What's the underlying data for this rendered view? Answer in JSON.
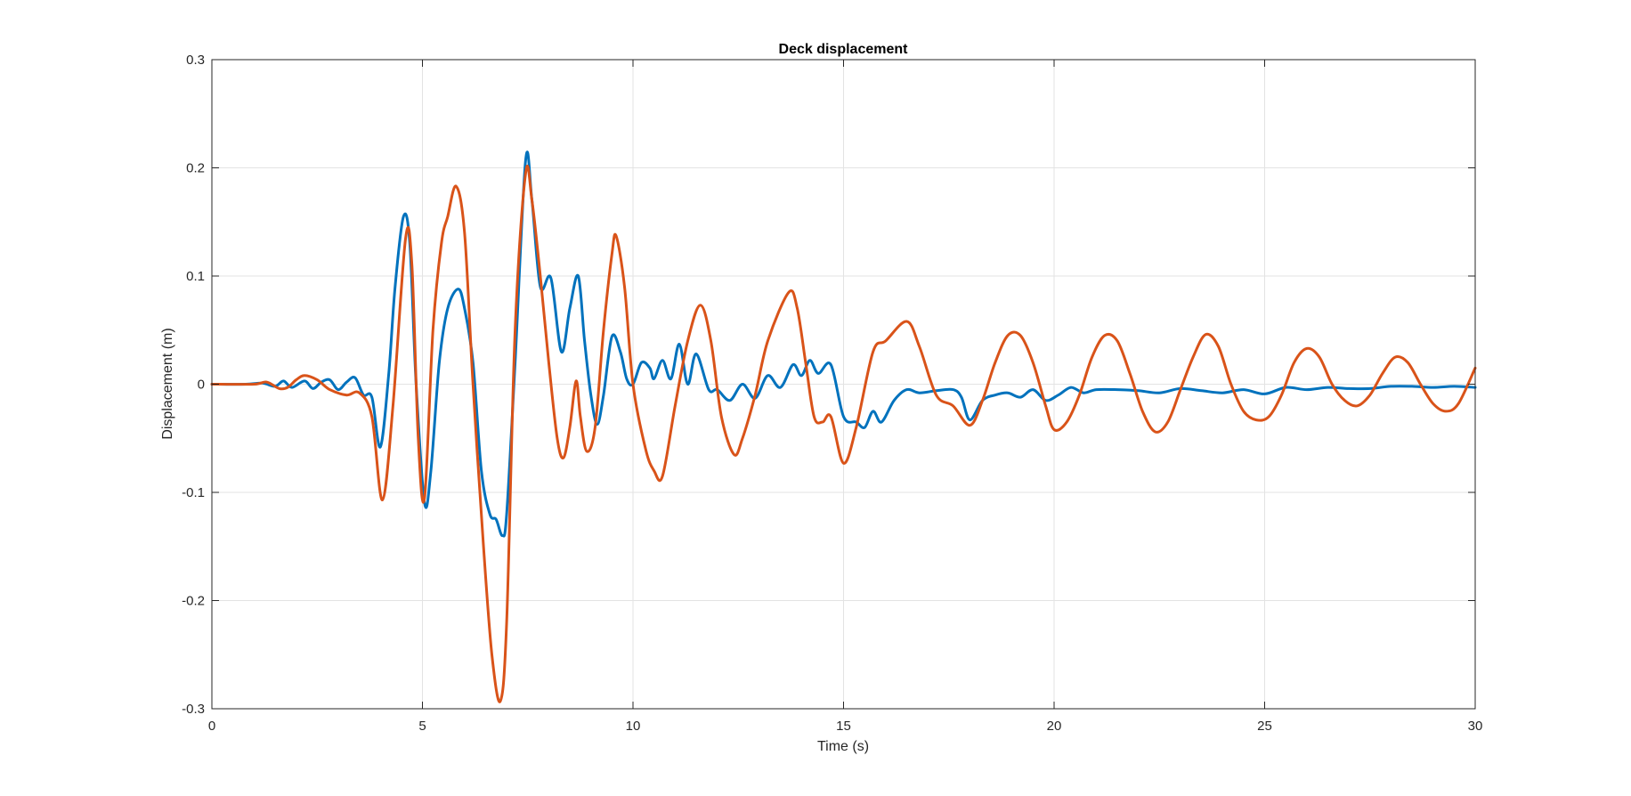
{
  "chart_data": {
    "type": "line",
    "title": "Deck displacement",
    "xlabel": "Time (s)",
    "ylabel": "Displacement (m)",
    "xlim": [
      0,
      30
    ],
    "ylim": [
      -0.3,
      0.3
    ],
    "grid": true,
    "legend": "none",
    "x_ticks": [
      {
        "value": 0,
        "label": "0"
      },
      {
        "value": 5,
        "label": "5"
      },
      {
        "value": 10,
        "label": "10"
      },
      {
        "value": 15,
        "label": "15"
      },
      {
        "value": 20,
        "label": "20"
      },
      {
        "value": 25,
        "label": "25"
      },
      {
        "value": 30,
        "label": "30"
      }
    ],
    "y_ticks": [
      {
        "value": -0.3,
        "label": "-0.3"
      },
      {
        "value": -0.2,
        "label": "-0.2"
      },
      {
        "value": -0.1,
        "label": "-0.1"
      },
      {
        "value": 0,
        "label": "0"
      },
      {
        "value": 0.1,
        "label": "0.1"
      },
      {
        "value": 0.2,
        "label": "0.2"
      },
      {
        "value": 0.3,
        "label": "0.3"
      }
    ],
    "series": [
      {
        "color": "#0072BD",
        "points": [
          [
            0,
            0
          ],
          [
            0.8,
            0
          ],
          [
            1.2,
            0.001
          ],
          [
            1.5,
            -0.002
          ],
          [
            1.7,
            0.003
          ],
          [
            1.9,
            -0.003
          ],
          [
            2.2,
            0.003
          ],
          [
            2.4,
            -0.004
          ],
          [
            2.6,
            0.002
          ],
          [
            2.8,
            0.004
          ],
          [
            3.0,
            -0.005
          ],
          [
            3.2,
            0.002
          ],
          [
            3.4,
            0.006
          ],
          [
            3.6,
            -0.01
          ],
          [
            3.8,
            -0.012
          ],
          [
            4.0,
            -0.058
          ],
          [
            4.2,
            0.01
          ],
          [
            4.35,
            0.09
          ],
          [
            4.55,
            0.155
          ],
          [
            4.7,
            0.13
          ],
          [
            4.85,
            0.0
          ],
          [
            5.05,
            -0.11
          ],
          [
            5.2,
            -0.08
          ],
          [
            5.4,
            0.02
          ],
          [
            5.6,
            0.07
          ],
          [
            5.85,
            0.088
          ],
          [
            6.0,
            0.07
          ],
          [
            6.2,
            0.02
          ],
          [
            6.4,
            -0.08
          ],
          [
            6.6,
            -0.12
          ],
          [
            6.75,
            -0.125
          ],
          [
            6.9,
            -0.14
          ],
          [
            7.0,
            -0.12
          ],
          [
            7.2,
            0.02
          ],
          [
            7.45,
            0.207
          ],
          [
            7.6,
            0.17
          ],
          [
            7.8,
            0.09
          ],
          [
            8.05,
            0.098
          ],
          [
            8.3,
            0.03
          ],
          [
            8.5,
            0.07
          ],
          [
            8.7,
            0.1
          ],
          [
            8.85,
            0.04
          ],
          [
            9.0,
            -0.01
          ],
          [
            9.15,
            -0.037
          ],
          [
            9.3,
            -0.01
          ],
          [
            9.5,
            0.044
          ],
          [
            9.7,
            0.03
          ],
          [
            9.85,
            0.005
          ],
          [
            10.0,
            0.0
          ],
          [
            10.2,
            0.02
          ],
          [
            10.4,
            0.015
          ],
          [
            10.5,
            0.005
          ],
          [
            10.7,
            0.022
          ],
          [
            10.9,
            0.005
          ],
          [
            11.1,
            0.037
          ],
          [
            11.3,
            0.0
          ],
          [
            11.5,
            0.028
          ],
          [
            11.8,
            -0.005
          ],
          [
            12.0,
            -0.005
          ],
          [
            12.3,
            -0.015
          ],
          [
            12.6,
            0.0
          ],
          [
            12.9,
            -0.013
          ],
          [
            13.2,
            0.008
          ],
          [
            13.5,
            -0.003
          ],
          [
            13.8,
            0.018
          ],
          [
            14.0,
            0.008
          ],
          [
            14.2,
            0.022
          ],
          [
            14.4,
            0.01
          ],
          [
            14.7,
            0.018
          ],
          [
            15.0,
            -0.03
          ],
          [
            15.3,
            -0.035
          ],
          [
            15.5,
            -0.04
          ],
          [
            15.7,
            -0.025
          ],
          [
            15.9,
            -0.035
          ],
          [
            16.2,
            -0.015
          ],
          [
            16.5,
            -0.005
          ],
          [
            16.8,
            -0.008
          ],
          [
            17.2,
            -0.006
          ],
          [
            17.6,
            -0.005
          ],
          [
            17.8,
            -0.012
          ],
          [
            18.0,
            -0.033
          ],
          [
            18.3,
            -0.015
          ],
          [
            18.6,
            -0.01
          ],
          [
            18.9,
            -0.008
          ],
          [
            19.2,
            -0.012
          ],
          [
            19.5,
            -0.005
          ],
          [
            19.8,
            -0.015
          ],
          [
            20.1,
            -0.01
          ],
          [
            20.4,
            -0.003
          ],
          [
            20.7,
            -0.008
          ],
          [
            21.0,
            -0.005
          ],
          [
            21.5,
            -0.005
          ],
          [
            22.0,
            -0.006
          ],
          [
            22.5,
            -0.008
          ],
          [
            23.0,
            -0.004
          ],
          [
            23.5,
            -0.006
          ],
          [
            24.0,
            -0.008
          ],
          [
            24.5,
            -0.005
          ],
          [
            25.0,
            -0.009
          ],
          [
            25.5,
            -0.003
          ],
          [
            26.0,
            -0.005
          ],
          [
            26.5,
            -0.003
          ],
          [
            27.0,
            -0.004
          ],
          [
            27.5,
            -0.004
          ],
          [
            28.0,
            -0.002
          ],
          [
            28.5,
            -0.002
          ],
          [
            29.0,
            -0.003
          ],
          [
            29.5,
            -0.002
          ],
          [
            30.0,
            -0.003
          ]
        ]
      },
      {
        "color": "#D95319",
        "points": [
          [
            0,
            0
          ],
          [
            1.0,
            0
          ],
          [
            1.3,
            0.002
          ],
          [
            1.6,
            -0.004
          ],
          [
            1.8,
            -0.003
          ],
          [
            2.0,
            0.004
          ],
          [
            2.2,
            0.008
          ],
          [
            2.5,
            0.004
          ],
          [
            2.8,
            -0.005
          ],
          [
            3.2,
            -0.01
          ],
          [
            3.5,
            -0.008
          ],
          [
            3.8,
            -0.03
          ],
          [
            4.05,
            -0.107
          ],
          [
            4.3,
            -0.02
          ],
          [
            4.6,
            0.135
          ],
          [
            4.75,
            0.11
          ],
          [
            4.9,
            -0.05
          ],
          [
            5.05,
            -0.105
          ],
          [
            5.25,
            0.05
          ],
          [
            5.45,
            0.13
          ],
          [
            5.6,
            0.155
          ],
          [
            5.8,
            0.183
          ],
          [
            6.0,
            0.14
          ],
          [
            6.2,
            0.0
          ],
          [
            6.45,
            -0.15
          ],
          [
            6.65,
            -0.25
          ],
          [
            6.85,
            -0.293
          ],
          [
            7.0,
            -0.22
          ],
          [
            7.2,
            0.05
          ],
          [
            7.45,
            0.195
          ],
          [
            7.6,
            0.17
          ],
          [
            7.8,
            0.1
          ],
          [
            8.0,
            0.02
          ],
          [
            8.2,
            -0.05
          ],
          [
            8.35,
            -0.068
          ],
          [
            8.5,
            -0.04
          ],
          [
            8.65,
            0.003
          ],
          [
            8.75,
            -0.03
          ],
          [
            8.9,
            -0.062
          ],
          [
            9.1,
            -0.04
          ],
          [
            9.3,
            0.05
          ],
          [
            9.5,
            0.12
          ],
          [
            9.6,
            0.137
          ],
          [
            9.8,
            0.09
          ],
          [
            10.0,
            0.0
          ],
          [
            10.3,
            -0.06
          ],
          [
            10.5,
            -0.08
          ],
          [
            10.7,
            -0.085
          ],
          [
            11.0,
            -0.02
          ],
          [
            11.3,
            0.04
          ],
          [
            11.6,
            0.073
          ],
          [
            11.85,
            0.04
          ],
          [
            12.1,
            -0.03
          ],
          [
            12.4,
            -0.065
          ],
          [
            12.6,
            -0.05
          ],
          [
            12.9,
            -0.01
          ],
          [
            13.2,
            0.04
          ],
          [
            13.7,
            0.085
          ],
          [
            13.9,
            0.07
          ],
          [
            14.1,
            0.02
          ],
          [
            14.3,
            -0.03
          ],
          [
            14.5,
            -0.035
          ],
          [
            14.7,
            -0.03
          ],
          [
            15.0,
            -0.073
          ],
          [
            15.3,
            -0.04
          ],
          [
            15.7,
            0.03
          ],
          [
            16.0,
            0.04
          ],
          [
            16.5,
            0.058
          ],
          [
            16.8,
            0.035
          ],
          [
            17.2,
            -0.01
          ],
          [
            17.6,
            -0.02
          ],
          [
            18.0,
            -0.038
          ],
          [
            18.3,
            -0.015
          ],
          [
            18.6,
            0.02
          ],
          [
            18.9,
            0.045
          ],
          [
            19.2,
            0.045
          ],
          [
            19.5,
            0.02
          ],
          [
            19.8,
            -0.02
          ],
          [
            20.0,
            -0.042
          ],
          [
            20.3,
            -0.035
          ],
          [
            20.6,
            -0.01
          ],
          [
            20.9,
            0.025
          ],
          [
            21.2,
            0.045
          ],
          [
            21.5,
            0.04
          ],
          [
            21.8,
            0.01
          ],
          [
            22.1,
            -0.025
          ],
          [
            22.4,
            -0.044
          ],
          [
            22.7,
            -0.035
          ],
          [
            23.0,
            -0.005
          ],
          [
            23.3,
            0.025
          ],
          [
            23.6,
            0.046
          ],
          [
            23.9,
            0.035
          ],
          [
            24.2,
            0.0
          ],
          [
            24.5,
            -0.025
          ],
          [
            24.8,
            -0.033
          ],
          [
            25.1,
            -0.03
          ],
          [
            25.4,
            -0.01
          ],
          [
            25.7,
            0.02
          ],
          [
            26.0,
            0.033
          ],
          [
            26.3,
            0.025
          ],
          [
            26.6,
            0.0
          ],
          [
            26.9,
            -0.015
          ],
          [
            27.2,
            -0.02
          ],
          [
            27.5,
            -0.01
          ],
          [
            27.8,
            0.01
          ],
          [
            28.1,
            0.025
          ],
          [
            28.4,
            0.02
          ],
          [
            28.7,
            0.0
          ],
          [
            29.0,
            -0.018
          ],
          [
            29.3,
            -0.025
          ],
          [
            29.6,
            -0.018
          ],
          [
            30.0,
            0.015
          ]
        ]
      }
    ]
  }
}
